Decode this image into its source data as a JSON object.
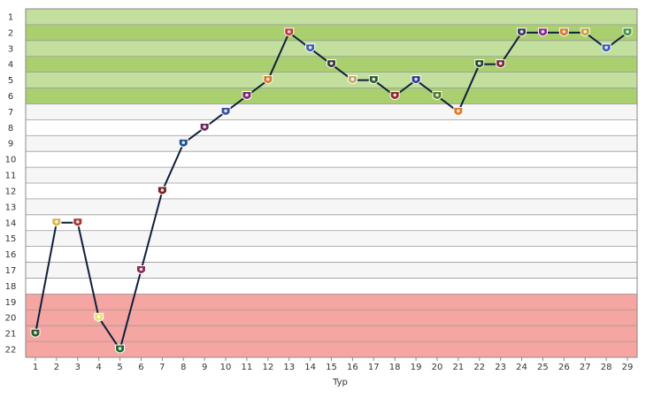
{
  "chart_data": {
    "type": "line",
    "title": "",
    "xlabel": "Typ",
    "ylabel": "",
    "x": [
      1,
      2,
      3,
      4,
      5,
      6,
      7,
      8,
      9,
      10,
      11,
      12,
      13,
      14,
      15,
      16,
      17,
      18,
      19,
      20,
      21,
      22,
      23,
      24,
      25,
      26,
      27,
      28,
      29
    ],
    "series": [
      {
        "values": [
          21,
          14,
          14,
          20,
          22,
          17,
          12,
          9,
          8,
          7,
          6,
          5,
          2,
          3,
          4,
          5,
          5,
          6,
          5,
          6,
          7,
          4,
          4,
          2,
          2,
          2,
          2,
          3,
          2
        ]
      }
    ],
    "y_reversed": true,
    "ylim": [
      1,
      22
    ],
    "xlim": [
      1,
      29
    ],
    "y_ticks": [
      "1",
      "2",
      "3",
      "4",
      "5",
      "6",
      "7",
      "8",
      "9",
      "10",
      "11",
      "12",
      "13",
      "14",
      "15",
      "16",
      "17",
      "18",
      "19",
      "20",
      "21",
      "22"
    ],
    "x_ticks": [
      "1",
      "2",
      "3",
      "4",
      "5",
      "6",
      "7",
      "8",
      "9",
      "10",
      "11",
      "12",
      "13",
      "14",
      "15",
      "16",
      "17",
      "18",
      "19",
      "20",
      "21",
      "22",
      "23",
      "24",
      "25",
      "26",
      "27",
      "28",
      "29"
    ],
    "grid": true,
    "legend": "none",
    "bands": [
      {
        "zone": "top",
        "from": 1,
        "to": 6,
        "color": "#c3df9d",
        "color_alt": "#a9cf6f"
      },
      {
        "zone": "middle",
        "from": 7,
        "to": 18,
        "color": "#f6f6f6",
        "color_alt": "#ffffff"
      },
      {
        "zone": "bottom",
        "from": 19,
        "to": 22,
        "color": "#f5a6a2",
        "color_alt": "#f5a6a2"
      }
    ],
    "line_color": "#0f1f3a",
    "marker_colors": [
      "#2e5b2a",
      "#d9b54a",
      "#a8362e",
      "#e8e07a",
      "#1f6a2f",
      "#8a2a55",
      "#7a1f20",
      "#1f4f8f",
      "#6a2a5a",
      "#3a4f9f",
      "#7a2a6a",
      "#d8772a",
      "#c23a3a",
      "#3a5fae",
      "#3a3a3a",
      "#c4a86a",
      "#2a5a2a",
      "#8a2a2a",
      "#2a3a8a",
      "#5a7a2a",
      "#e0782a",
      "#2a4a2a",
      "#7a2a3a",
      "#3a3a5a",
      "#8a2a8a",
      "#d8772a",
      "#c2a43a",
      "#3a5fae",
      "#4a8f4a"
    ]
  }
}
